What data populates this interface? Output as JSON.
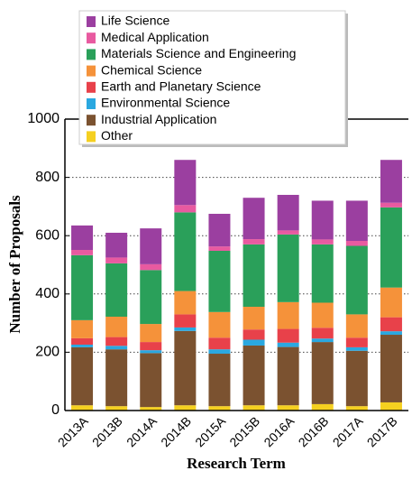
{
  "chart_data": {
    "type": "stacked_bar",
    "x_label": "Research Term",
    "y_label": "Number of Proposals",
    "categories": [
      "2013A",
      "2013B",
      "2014A",
      "2014B",
      "2015A",
      "2015B",
      "2016A",
      "2016B",
      "2017A",
      "2017B"
    ],
    "series": [
      {
        "name": "Other",
        "color": "#f5d020",
        "values": [
          18,
          15,
          12,
          18,
          15,
          18,
          18,
          22,
          15,
          28
        ]
      },
      {
        "name": "Industrial Application",
        "color": "#7b5230",
        "values": [
          199,
          195,
          185,
          255,
          180,
          205,
          200,
          213,
          190,
          232
        ]
      },
      {
        "name": "Environmental Science",
        "color": "#2aa8e0",
        "values": [
          9,
          12,
          10,
          12,
          15,
          20,
          15,
          12,
          12,
          12
        ]
      },
      {
        "name": "Earth and Planetary Science",
        "color": "#e8414a",
        "values": [
          22,
          30,
          28,
          45,
          40,
          35,
          47,
          37,
          33,
          48
        ]
      },
      {
        "name": "Chemical Science",
        "color": "#f5923a",
        "values": [
          62,
          70,
          62,
          80,
          88,
          78,
          92,
          86,
          80,
          102
        ]
      },
      {
        "name": "Materials Science and Engineering",
        "color": "#2aa05a",
        "values": [
          223,
          183,
          185,
          270,
          210,
          214,
          232,
          200,
          235,
          275
        ]
      },
      {
        "name": "Medical Application",
        "color": "#e85aa0",
        "values": [
          18,
          20,
          20,
          25,
          15,
          18,
          14,
          17,
          17,
          16
        ]
      },
      {
        "name": "Life Science",
        "color": "#9b3fa0",
        "values": [
          84,
          85,
          123,
          155,
          112,
          142,
          122,
          133,
          138,
          147
        ]
      }
    ],
    "ylim": [
      0,
      1000
    ],
    "yticks": [
      0,
      200,
      400,
      600,
      800,
      1000
    ],
    "grid": true
  }
}
